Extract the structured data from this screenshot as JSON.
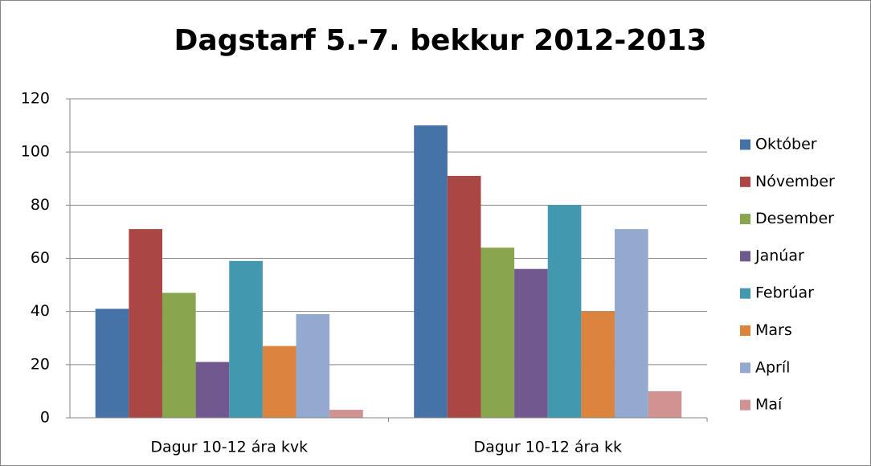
{
  "chart_data": {
    "type": "bar",
    "title": "Dagstarf 5.-7. bekkur 2012-2013",
    "categories": [
      "Dagur 10-12 ára kvk",
      "Dagur 10-12 ára kk"
    ],
    "series": [
      {
        "name": "Október",
        "color": "#4572a7",
        "values": [
          41,
          110
        ]
      },
      {
        "name": "Nóvember",
        "color": "#aa4643",
        "values": [
          71,
          91
        ]
      },
      {
        "name": "Desember",
        "color": "#89a54e",
        "values": [
          47,
          64
        ]
      },
      {
        "name": "Janúar",
        "color": "#71588f",
        "values": [
          21,
          56
        ]
      },
      {
        "name": "Febrúar",
        "color": "#4198af",
        "values": [
          59,
          80
        ]
      },
      {
        "name": "Mars",
        "color": "#db843d",
        "values": [
          27,
          40
        ]
      },
      {
        "name": "Apríl",
        "color": "#93a9cf",
        "values": [
          39,
          71
        ]
      },
      {
        "name": "Maí",
        "color": "#d19392",
        "values": [
          3,
          10
        ]
      }
    ],
    "ylim": [
      0,
      120
    ],
    "yticks": [
      0,
      20,
      40,
      60,
      80,
      100,
      120
    ],
    "grid": true,
    "legend": "right"
  }
}
